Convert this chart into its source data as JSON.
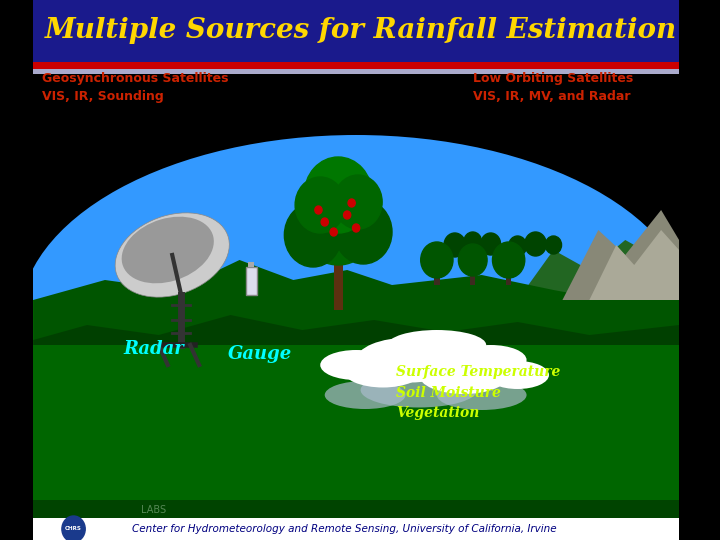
{
  "title": "Multiple Sources for Rainfall Estimation",
  "title_color": "#FFD700",
  "title_bg": "#1a1a8c",
  "label_geo": "Geosynchronous Satellites\nVIS, IR, Sounding",
  "label_low": "Low Orbiting Satellites\nVIS, IR, MV, and Radar",
  "label_radar": "Radar",
  "label_gauge": "Gauge",
  "label_surface": "Surface Temperature\nSoil Moisture\nVegetation",
  "footer_text": "Center for Hydrometeorology and Remote Sensing, University of California, Irvine",
  "label_color_orange": "#cc2200",
  "label_color_cyan": "#00ffff",
  "label_color_yellow": "#ccff00",
  "sky_oval_color": "#3399ff",
  "black_bg": "#000000",
  "green_ground": "#007700",
  "green_dark": "#004400",
  "footer_white": "#ffffff",
  "footer_color": "#000080",
  "header_stripe_red": "#cc0000",
  "header_stripe_light": "#aaaacc"
}
